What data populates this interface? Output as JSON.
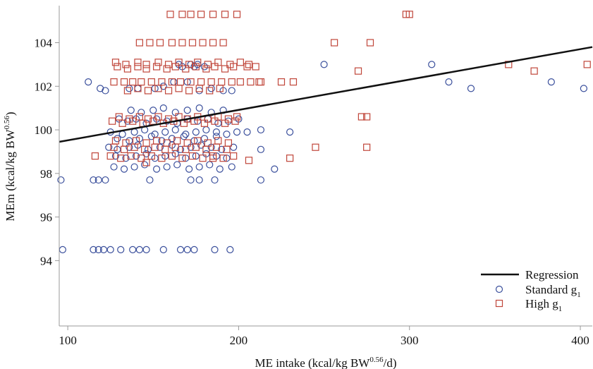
{
  "chart_data": {
    "type": "scatter",
    "xlabel": {
      "base": "ME intake (kcal/kg BW",
      "sup": "0.56",
      "tail": "/d)"
    },
    "ylabel": {
      "base": "MEm (kcal/kg BW",
      "sup": "0.56",
      "tail": ")"
    },
    "xlim": [
      95,
      407
    ],
    "ylim": [
      91,
      105.7
    ],
    "xticks": [
      100,
      200,
      300,
      400
    ],
    "yticks": [
      94,
      96,
      98,
      100,
      102,
      104
    ],
    "grid": false,
    "legend_position": "bottom-right",
    "legend": [
      {
        "kind": "line",
        "base": "Regression",
        "sub": ""
      },
      {
        "kind": "circle",
        "base": "Standard g",
        "sub": "1"
      },
      {
        "kind": "square",
        "base": "High g",
        "sub": "1"
      }
    ],
    "regression": {
      "x": [
        95,
        407
      ],
      "y": [
        99.45,
        103.8
      ]
    },
    "colors": {
      "standard": "#3a4f9c",
      "high": "#c0463a",
      "regression": "#111111"
    },
    "series": [
      {
        "key": "standard",
        "x": [
          97,
          115,
          118,
          121,
          125,
          131,
          138,
          142,
          146,
          156,
          166,
          170,
          174,
          186,
          195,
          96,
          118,
          122,
          115,
          148,
          172,
          213,
          112,
          119,
          122,
          136,
          141,
          151,
          156,
          162,
          170,
          177,
          184,
          191,
          196,
          250,
          313,
          323,
          336,
          383,
          402,
          130,
          135,
          140,
          146,
          152,
          158,
          164,
          170,
          176,
          182,
          188,
          194,
          200,
          125,
          132,
          139,
          145,
          151,
          157,
          163,
          169,
          175,
          181,
          187,
          193,
          199,
          124,
          129,
          136,
          141,
          147,
          154,
          161,
          166,
          172,
          178,
          184,
          190,
          197,
          128,
          134,
          140,
          146,
          151,
          157,
          163,
          169,
          175,
          181,
          187,
          193,
          127,
          133,
          139,
          145,
          152,
          158,
          164,
          171,
          177,
          183,
          189,
          196,
          129,
          136,
          142,
          149,
          155,
          161,
          168,
          174,
          180,
          187,
          137,
          143,
          150,
          156,
          163,
          170,
          177,
          184,
          191,
          165,
          167,
          172,
          174,
          176,
          180,
          205,
          213,
          230,
          213,
          221,
          186,
          177
        ],
        "y": [
          94.5,
          94.5,
          94.5,
          94.5,
          94.5,
          94.5,
          94.5,
          94.5,
          94.5,
          94.5,
          94.5,
          94.5,
          94.5,
          94.5,
          94.5,
          97.7,
          97.7,
          97.7,
          97.7,
          97.7,
          97.7,
          97.7,
          102.2,
          101.9,
          101.8,
          101.9,
          101.9,
          101.9,
          102.0,
          102.2,
          102.2,
          101.8,
          101.9,
          101.8,
          101.8,
          103.0,
          103.0,
          102.2,
          101.9,
          102.2,
          101.9,
          100.5,
          100.4,
          100.5,
          100.3,
          100.5,
          100.4,
          100.3,
          100.5,
          100.4,
          100.5,
          100.3,
          100.4,
          100.5,
          99.9,
          99.8,
          99.9,
          100.0,
          99.8,
          99.9,
          100.0,
          99.8,
          99.9,
          100.0,
          99.9,
          99.8,
          99.9,
          99.2,
          99.1,
          99.2,
          99.3,
          99.1,
          99.2,
          99.3,
          99.1,
          99.2,
          99.3,
          99.2,
          99.1,
          99.2,
          98.8,
          98.7,
          98.8,
          98.9,
          98.7,
          98.8,
          98.9,
          98.7,
          98.8,
          98.9,
          98.8,
          98.7,
          98.3,
          98.2,
          98.3,
          98.4,
          98.2,
          98.3,
          98.4,
          98.2,
          98.3,
          98.4,
          98.2,
          98.3,
          99.6,
          99.5,
          99.6,
          99.7,
          99.5,
          99.6,
          99.7,
          99.5,
          99.6,
          99.7,
          100.9,
          100.8,
          100.9,
          101.0,
          100.8,
          100.9,
          101.0,
          100.8,
          100.9,
          103.0,
          102.9,
          103.0,
          102.9,
          103.0,
          102.9,
          99.9,
          100.0,
          99.9,
          99.1,
          98.2,
          97.7,
          97.7
        ]
      },
      {
        "key": "high",
        "x": [
          128,
          134,
          141,
          146,
          153,
          159,
          165,
          171,
          176,
          182,
          188,
          195,
          201,
          206,
          129,
          135,
          141,
          146,
          152,
          158,
          163,
          169,
          175,
          181,
          186,
          192,
          197,
          205,
          210,
          127,
          133,
          138,
          143,
          149,
          155,
          161,
          166,
          172,
          178,
          184,
          190,
          196,
          201,
          207,
          212,
          130,
          136,
          142,
          147,
          153,
          159,
          165,
          170,
          176,
          182,
          188,
          194,
          199,
          126,
          132,
          138,
          144,
          150,
          156,
          162,
          168,
          174,
          180,
          186,
          192,
          198,
          128,
          134,
          140,
          146,
          152,
          158,
          164,
          170,
          176,
          182,
          188,
          194,
          127,
          133,
          139,
          145,
          151,
          157,
          163,
          169,
          175,
          181,
          187,
          193,
          125,
          131,
          137,
          143,
          149,
          155,
          161,
          167,
          173,
          179,
          185,
          191,
          197,
          135,
          141,
          147,
          153,
          159,
          165,
          171,
          177,
          183,
          189,
          142,
          148,
          154,
          161,
          167,
          173,
          179,
          185,
          191,
          160,
          167,
          172,
          178,
          185,
          192,
          199,
          116,
          146,
          185,
          206,
          213,
          230,
          232,
          245,
          272,
          275,
          275,
          225,
          256,
          270,
          277,
          298,
          300,
          358,
          373,
          404
        ],
        "y": [
          103.1,
          103.0,
          103.1,
          103.0,
          103.1,
          103.0,
          103.1,
          103.0,
          103.1,
          103.0,
          103.1,
          103.0,
          103.1,
          103.0,
          102.9,
          102.8,
          102.9,
          102.8,
          102.9,
          102.8,
          102.9,
          102.8,
          102.9,
          102.8,
          102.9,
          102.8,
          102.9,
          102.9,
          102.9,
          102.2,
          102.2,
          102.2,
          102.2,
          102.2,
          102.2,
          102.2,
          102.2,
          102.2,
          102.2,
          102.2,
          102.2,
          102.2,
          102.2,
          102.2,
          102.2,
          100.6,
          100.5,
          100.6,
          100.5,
          100.6,
          100.5,
          100.6,
          100.5,
          100.6,
          100.5,
          100.6,
          100.5,
          100.6,
          100.4,
          100.3,
          100.4,
          100.3,
          100.4,
          100.3,
          100.4,
          100.3,
          100.4,
          100.3,
          100.4,
          100.3,
          100.4,
          99.5,
          99.4,
          99.5,
          99.4,
          99.5,
          99.4,
          99.5,
          99.4,
          99.5,
          99.4,
          99.5,
          99.4,
          99.2,
          99.1,
          99.2,
          99.1,
          99.2,
          99.1,
          99.2,
          99.1,
          99.2,
          99.1,
          99.2,
          99.1,
          98.8,
          98.7,
          98.8,
          98.7,
          98.8,
          98.7,
          98.8,
          98.7,
          98.8,
          98.7,
          98.8,
          98.7,
          98.8,
          101.8,
          101.9,
          101.8,
          101.9,
          101.8,
          101.9,
          101.8,
          101.9,
          101.8,
          101.9,
          104.0,
          104.0,
          104.0,
          104.0,
          104.0,
          104.0,
          104.0,
          104.0,
          104.0,
          105.3,
          105.3,
          105.3,
          105.3,
          105.3,
          105.3,
          105.3,
          98.8,
          98.5,
          98.7,
          98.6,
          102.2,
          98.7,
          102.2,
          99.2,
          100.6,
          100.6,
          99.2,
          102.2,
          104.0,
          102.7,
          104.0,
          105.3,
          105.3,
          103.0,
          102.7,
          103.0
        ]
      }
    ]
  }
}
